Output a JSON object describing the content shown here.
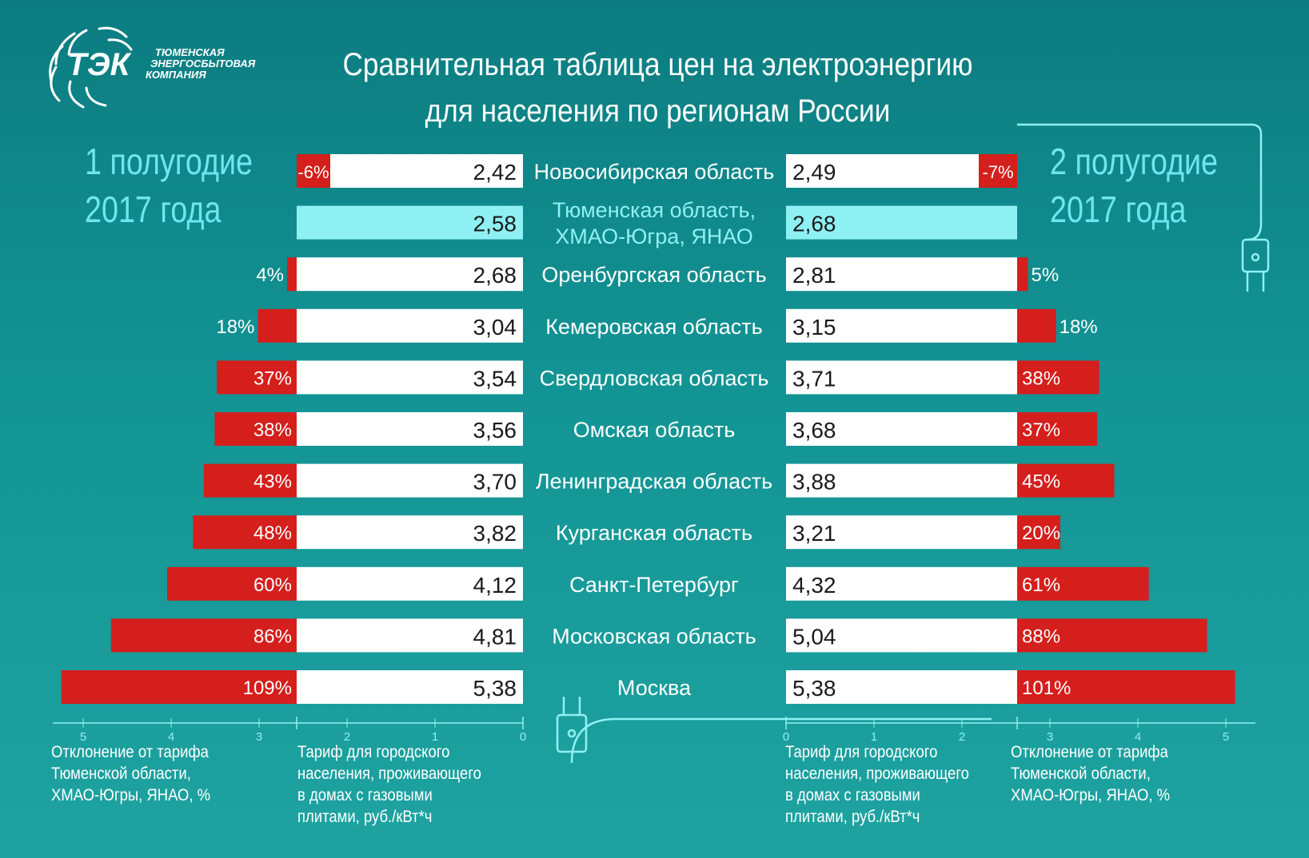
{
  "logo": {
    "abbr": "ТЭК",
    "line1": "ТЮМЕНСКАЯ",
    "line2": "ЭНЕРГОСБЫТОВАЯ",
    "line3": "КОМПАНИЯ"
  },
  "title": {
    "line1": "Сравнительная таблица цен на электроэнергию",
    "line2": "для населения по регионам России"
  },
  "periods": {
    "left": {
      "line1": "1 полугодие",
      "line2": "2017 года"
    },
    "right": {
      "line1": "2 полугодие",
      "line2": "2017 года"
    }
  },
  "notes": {
    "deviation": [
      "Отклонение от тарифа",
      "Тюменской области,",
      "ХМАО-Югры, ЯНАО, %"
    ],
    "tariff": [
      "Тариф для городского",
      "населения, проживающего",
      "в домах с газовыми",
      "плитами, руб./кВт*ч"
    ]
  },
  "colors": {
    "background": "#139494",
    "deviation_bar": "#d41f1c",
    "tariff_bar": "#ffffff",
    "highlight_bar": "#8ff0f3",
    "period_text": "#6fe6ec"
  },
  "chart_data": {
    "type": "bar",
    "layout": "butterfly",
    "categories": [
      "Новосибирская область",
      "Тюменская область, ХМАО-Югра, ЯНАО",
      "Оренбургская область",
      "Кемеровская область",
      "Свердловская область",
      "Омская область",
      "Ленинградская область",
      "Курганская область",
      "Санкт-Петербург",
      "Московская область",
      "Москва"
    ],
    "category_lines": [
      [
        "Новосибирская область"
      ],
      [
        "Тюменская область,",
        "ХМАО-Югра, ЯНАО"
      ],
      [
        "Оренбургская область"
      ],
      [
        "Кемеровская область"
      ],
      [
        "Свердловская область"
      ],
      [
        "Омская область"
      ],
      [
        "Ленинградская область"
      ],
      [
        "Курганская область"
      ],
      [
        "Санкт-Петербург"
      ],
      [
        "Московская область"
      ],
      [
        "Москва"
      ]
    ],
    "highlight_index": 1,
    "tariff_first_half": [
      2.42,
      2.58,
      2.68,
      3.04,
      3.54,
      3.56,
      3.7,
      3.82,
      4.12,
      4.81,
      5.38
    ],
    "tariff_first_half_labels": [
      "2,42",
      "2,58",
      "2,68",
      "3,04",
      "3,54",
      "3,56",
      "3,70",
      "3,82",
      "4,12",
      "4,81",
      "5,38"
    ],
    "deviation_first_half": [
      -6,
      null,
      4,
      18,
      37,
      38,
      43,
      48,
      60,
      86,
      109
    ],
    "deviation_first_half_labels": [
      "-6%",
      "",
      "4%",
      "18%",
      "37%",
      "38%",
      "43%",
      "48%",
      "60%",
      "86%",
      "109%"
    ],
    "tariff_second_half": [
      2.49,
      2.68,
      2.81,
      3.15,
      3.71,
      3.68,
      3.88,
      3.21,
      4.32,
      5.04,
      5.38
    ],
    "tariff_second_half_labels": [
      "2,49",
      "2,68",
      "2,81",
      "3,15",
      "3,71",
      "3,68",
      "3,88",
      "3,21",
      "4,32",
      "5,04",
      "5,38"
    ],
    "deviation_second_half": [
      -7,
      null,
      5,
      18,
      38,
      37,
      45,
      20,
      61,
      88,
      101
    ],
    "deviation_second_half_labels": [
      "-7%",
      "",
      "5%",
      "18%",
      "38%",
      "37%",
      "45%",
      "20%",
      "61%",
      "88%",
      "101%"
    ],
    "tariff_axis_ticks": [
      "0",
      "1",
      "2"
    ],
    "deviation_axis_ticks": [
      "3",
      "4",
      "5"
    ]
  }
}
